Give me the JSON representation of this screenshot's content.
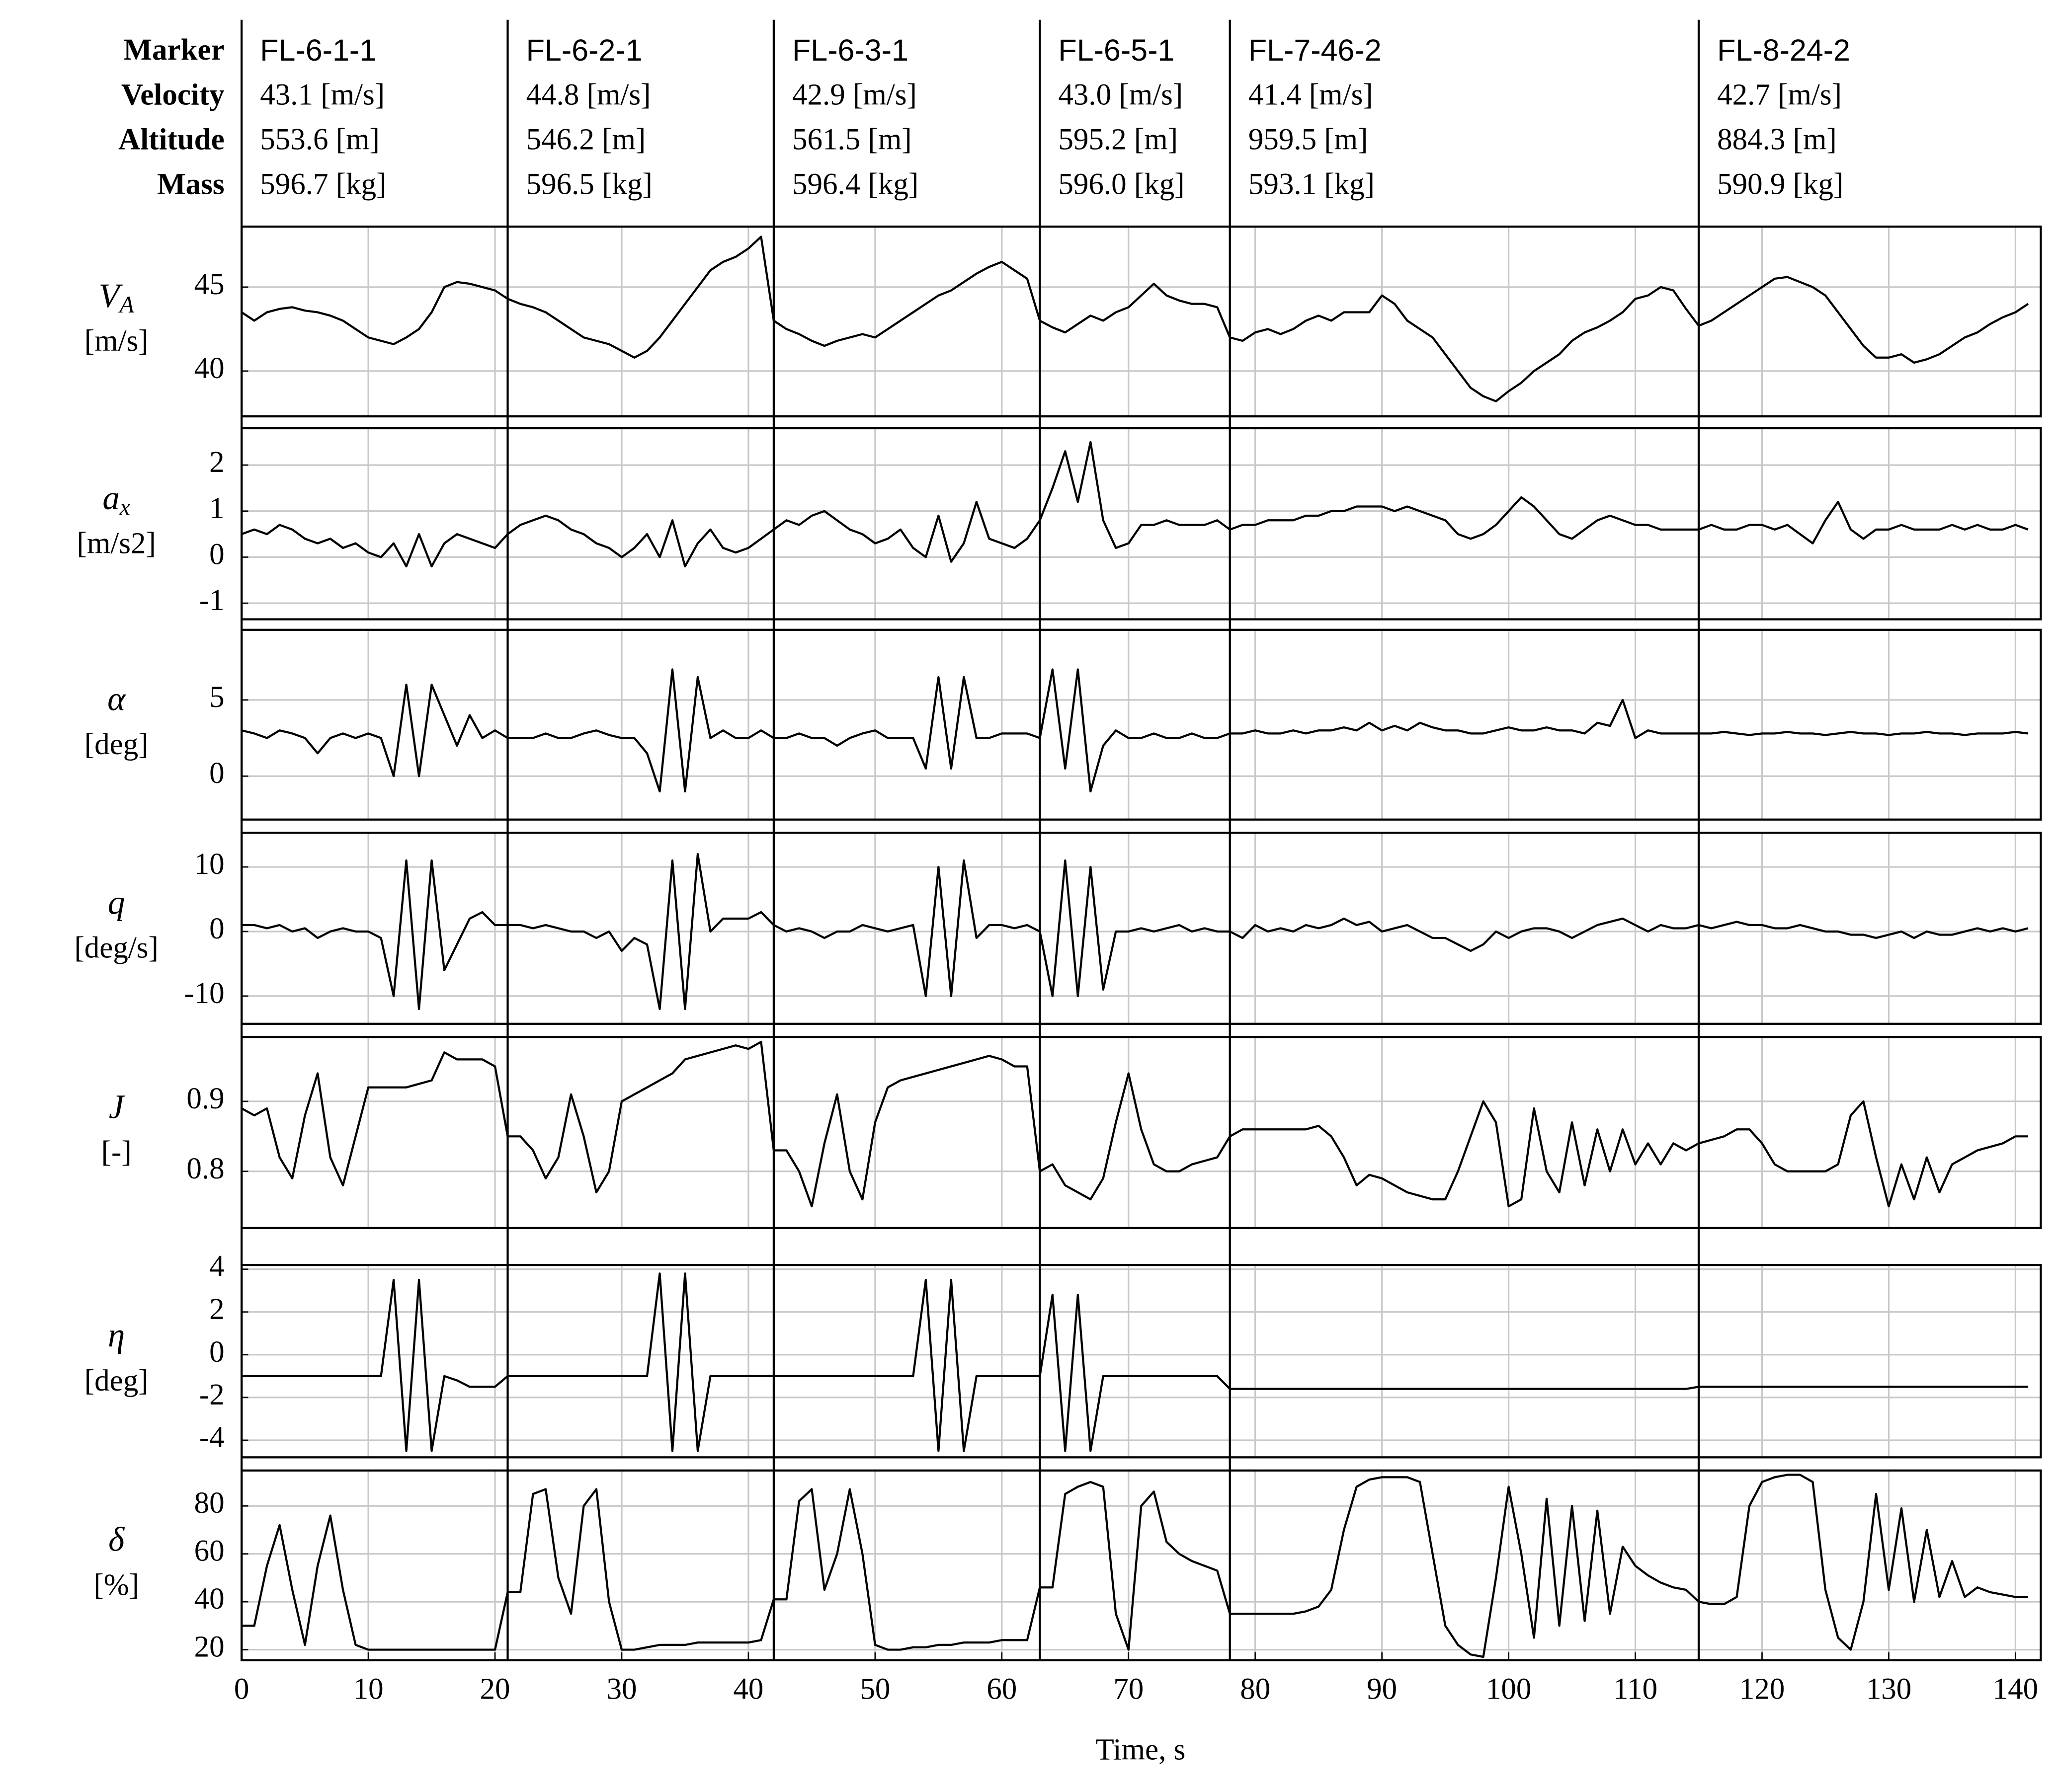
{
  "chart_data": {
    "type": "line",
    "row_labels": [
      "Marker",
      "Velocity",
      "Altitude",
      "Mass"
    ],
    "segments": [
      {
        "start": 0,
        "marker": "FL-6-1-1",
        "velocity": "43.1 [m/s]",
        "altitude": "553.6 [m]",
        "mass": "596.7 [kg]"
      },
      {
        "start": 21,
        "marker": "FL-6-2-1",
        "velocity": "44.8 [m/s]",
        "altitude": "546.2 [m]",
        "mass": "596.5 [kg]"
      },
      {
        "start": 42,
        "marker": "FL-6-3-1",
        "velocity": "42.9 [m/s]",
        "altitude": "561.5 [m]",
        "mass": "596.4 [kg]"
      },
      {
        "start": 63,
        "marker": "FL-6-5-1",
        "velocity": "43.0 [m/s]",
        "altitude": "595.2 [m]",
        "mass": "596.0 [kg]"
      },
      {
        "start": 78,
        "marker": "FL-7-46-2",
        "velocity": "41.4 [m/s]",
        "altitude": "959.5 [m]",
        "mass": "593.1 [kg]"
      },
      {
        "start": 115,
        "marker": "FL-8-24-2",
        "velocity": "42.7 [m/s]",
        "altitude": "884.3 [m]",
        "mass": "590.9 [kg]"
      }
    ],
    "xlabel": "Time, s",
    "xlim": [
      0,
      142
    ],
    "xticks": [
      0,
      10,
      20,
      30,
      40,
      50,
      60,
      70,
      80,
      90,
      100,
      110,
      120,
      130,
      140
    ],
    "grid": true,
    "color": "#000000",
    "x": [
      0,
      1,
      2,
      3,
      4,
      5,
      6,
      7,
      8,
      9,
      10,
      11,
      12,
      13,
      14,
      15,
      16,
      17,
      18,
      19,
      20,
      21,
      22,
      23,
      24,
      25,
      26,
      27,
      28,
      29,
      30,
      31,
      32,
      33,
      34,
      35,
      36,
      37,
      38,
      39,
      40,
      41,
      42,
      43,
      44,
      45,
      46,
      47,
      48,
      49,
      50,
      51,
      52,
      53,
      54,
      55,
      56,
      57,
      58,
      59,
      60,
      61,
      62,
      63,
      64,
      65,
      66,
      67,
      68,
      69,
      70,
      71,
      72,
      73,
      74,
      75,
      76,
      77,
      78,
      79,
      80,
      81,
      82,
      83,
      84,
      85,
      86,
      87,
      88,
      89,
      90,
      91,
      92,
      93,
      94,
      95,
      96,
      97,
      98,
      99,
      100,
      101,
      102,
      103,
      104,
      105,
      106,
      107,
      108,
      109,
      110,
      111,
      112,
      113,
      114,
      115,
      116,
      117,
      118,
      119,
      120,
      121,
      122,
      123,
      124,
      125,
      126,
      127,
      128,
      129,
      130,
      131,
      132,
      133,
      134,
      135,
      136,
      137,
      138,
      139,
      140,
      141
    ],
    "panels": [
      {
        "symbol": "V",
        "subscript": "A",
        "unit": "[m/s]",
        "ylim": [
          37.3,
          48.6
        ],
        "yticks": [
          40,
          45
        ],
        "values": [
          43.5,
          43,
          43.5,
          43.7,
          43.8,
          43.6,
          43.5,
          43.3,
          43,
          42.5,
          42,
          41.8,
          41.6,
          42,
          42.5,
          43.5,
          45,
          45.3,
          45.2,
          45,
          44.8,
          44.3,
          44,
          43.8,
          43.5,
          43,
          42.5,
          42,
          41.8,
          41.6,
          41.2,
          40.8,
          41.2,
          42,
          43,
          44,
          45,
          46,
          46.5,
          46.8,
          47.3,
          48,
          43,
          42.5,
          42.2,
          41.8,
          41.5,
          41.8,
          42,
          42.2,
          42,
          42.5,
          43,
          43.5,
          44,
          44.5,
          44.8,
          45.3,
          45.8,
          46.2,
          46.5,
          46,
          45.5,
          43,
          42.6,
          42.3,
          42.8,
          43.3,
          43,
          43.5,
          43.8,
          44.5,
          45.2,
          44.5,
          44.2,
          44,
          44,
          43.8,
          42,
          41.8,
          42.3,
          42.5,
          42.2,
          42.5,
          43,
          43.3,
          43,
          43.5,
          43.5,
          43.5,
          44.5,
          44,
          43,
          42.5,
          42,
          41,
          40,
          39,
          38.5,
          38.2,
          38.8,
          39.3,
          40,
          40.5,
          41,
          41.8,
          42.3,
          42.6,
          43,
          43.5,
          44.3,
          44.5,
          45,
          44.8,
          43.7,
          42.7,
          43,
          43.5,
          44,
          44.5,
          45,
          45.5,
          45.6,
          45.3,
          45,
          44.5,
          43.5,
          42.5,
          41.5,
          40.8,
          40.8,
          41,
          40.5,
          40.7,
          41,
          41.5,
          42,
          42.3,
          42.8,
          43.2,
          43.5,
          44
        ]
      },
      {
        "symbol": "a",
        "subscript": "x",
        "unit": "[m/s2]",
        "ylim": [
          -1.35,
          2.8
        ],
        "yticks": [
          -1,
          0,
          1,
          2
        ],
        "values": [
          0.5,
          0.6,
          0.5,
          0.7,
          0.6,
          0.4,
          0.3,
          0.4,
          0.2,
          0.3,
          0.1,
          0,
          0.3,
          -0.2,
          0.5,
          -0.2,
          0.3,
          0.5,
          0.4,
          0.3,
          0.2,
          0.5,
          0.7,
          0.8,
          0.9,
          0.8,
          0.6,
          0.5,
          0.3,
          0.2,
          0,
          0.2,
          0.5,
          0,
          0.8,
          -0.2,
          0.3,
          0.6,
          0.2,
          0.1,
          0.2,
          0.4,
          0.6,
          0.8,
          0.7,
          0.9,
          1.0,
          0.8,
          0.6,
          0.5,
          0.3,
          0.4,
          0.6,
          0.2,
          0,
          0.9,
          -0.1,
          0.3,
          1.2,
          0.4,
          0.3,
          0.2,
          0.4,
          0.8,
          1.5,
          2.3,
          1.2,
          2.5,
          0.8,
          0.2,
          0.3,
          0.7,
          0.7,
          0.8,
          0.7,
          0.7,
          0.7,
          0.8,
          0.6,
          0.7,
          0.7,
          0.8,
          0.8,
          0.8,
          0.9,
          0.9,
          1.0,
          1.0,
          1.1,
          1.1,
          1.1,
          1.0,
          1.1,
          1.0,
          0.9,
          0.8,
          0.5,
          0.4,
          0.5,
          0.7,
          1.0,
          1.3,
          1.1,
          0.8,
          0.5,
          0.4,
          0.6,
          0.8,
          0.9,
          0.8,
          0.7,
          0.7,
          0.6,
          0.6,
          0.6,
          0.6,
          0.7,
          0.6,
          0.6,
          0.7,
          0.7,
          0.6,
          0.7,
          0.5,
          0.3,
          0.8,
          1.2,
          0.6,
          0.4,
          0.6,
          0.6,
          0.7,
          0.6,
          0.6,
          0.6,
          0.7,
          0.6,
          0.7,
          0.6,
          0.6,
          0.7,
          0.6
        ]
      },
      {
        "symbol": "α",
        "unit": "[deg]",
        "ylim": [
          -2.85,
          9.6
        ],
        "yticks": [
          0,
          5
        ],
        "values": [
          3,
          2.8,
          2.5,
          3,
          2.8,
          2.5,
          1.5,
          2.5,
          2.8,
          2.5,
          2.8,
          2.5,
          0,
          6,
          0,
          6,
          4,
          2,
          4,
          2.5,
          3,
          2.5,
          2.5,
          2.5,
          2.8,
          2.5,
          2.5,
          2.8,
          3,
          2.7,
          2.5,
          2.5,
          1.5,
          -1,
          7,
          -1,
          6.5,
          2.5,
          3,
          2.5,
          2.5,
          3,
          2.5,
          2.5,
          2.8,
          2.5,
          2.5,
          2,
          2.5,
          2.8,
          3,
          2.5,
          2.5,
          2.5,
          0.5,
          6.5,
          0.5,
          6.5,
          2.5,
          2.5,
          2.8,
          2.8,
          2.8,
          2.5,
          7,
          0.5,
          7,
          -1,
          2,
          3,
          2.5,
          2.5,
          2.8,
          2.5,
          2.5,
          2.8,
          2.5,
          2.5,
          2.8,
          2.8,
          3,
          2.8,
          2.8,
          3,
          2.8,
          3,
          3,
          3.2,
          3,
          3.5,
          3,
          3.3,
          3,
          3.5,
          3.2,
          3,
          3,
          2.8,
          2.8,
          3,
          3.2,
          3,
          3,
          3.2,
          3,
          3,
          2.8,
          3.5,
          3.3,
          5,
          2.5,
          3,
          2.8,
          2.8,
          2.8,
          2.8,
          2.8,
          2.9,
          2.8,
          2.7,
          2.8,
          2.8,
          2.9,
          2.8,
          2.8,
          2.7,
          2.8,
          2.9,
          2.8,
          2.8,
          2.7,
          2.8,
          2.8,
          2.9,
          2.8,
          2.8,
          2.7,
          2.8,
          2.8,
          2.8,
          2.9,
          2.8
        ]
      },
      {
        "symbol": "q",
        "unit": "[deg/s]",
        "ylim": [
          -14.3,
          15.3
        ],
        "yticks": [
          -10,
          0,
          10
        ],
        "values": [
          1,
          1,
          0.5,
          1,
          0,
          0.5,
          -1,
          0,
          0.5,
          0,
          0,
          -1,
          -10,
          11,
          -12,
          11,
          -6,
          -2,
          2,
          3,
          1,
          1,
          1,
          0.5,
          1,
          0.5,
          0,
          0,
          -1,
          0,
          -3,
          -1,
          -2,
          -12,
          11,
          -12,
          12,
          0,
          2,
          2,
          2,
          3,
          1,
          0,
          0.5,
          0,
          -1,
          0,
          0,
          1,
          0.5,
          0,
          0.5,
          1,
          -10,
          10,
          -10,
          11,
          -1,
          1,
          1,
          0.5,
          1,
          0,
          -10,
          11,
          -10,
          10,
          -9,
          0,
          0,
          0.5,
          0,
          0.5,
          1,
          0,
          0.5,
          0,
          0,
          -1,
          1,
          0,
          0.5,
          0,
          1,
          0.5,
          1,
          2,
          1,
          1.5,
          0,
          0.5,
          1,
          0,
          -1,
          -1,
          -2,
          -3,
          -2,
          0,
          -1,
          0,
          0.5,
          0.5,
          0,
          -1,
          0,
          1,
          1.5,
          2,
          1,
          0,
          1,
          0.5,
          0.5,
          1,
          0.5,
          1,
          1.5,
          1,
          1,
          0.5,
          0.5,
          1,
          0.5,
          0,
          0,
          -0.5,
          -0.5,
          -1,
          -0.5,
          0,
          -1,
          0,
          -0.5,
          -0.5,
          0,
          0.5,
          0,
          0.5,
          0,
          0.5
        ]
      },
      {
        "symbol": "J",
        "unit": "[-]",
        "ylim": [
          0.719,
          0.992
        ],
        "yticks": [
          0.8,
          0.9
        ],
        "values": [
          0.89,
          0.88,
          0.89,
          0.82,
          0.79,
          0.88,
          0.94,
          0.82,
          0.78,
          0.85,
          0.92,
          0.92,
          0.92,
          0.92,
          0.925,
          0.93,
          0.97,
          0.96,
          0.96,
          0.96,
          0.95,
          0.85,
          0.85,
          0.83,
          0.79,
          0.82,
          0.91,
          0.85,
          0.77,
          0.8,
          0.9,
          0.91,
          0.92,
          0.93,
          0.94,
          0.96,
          0.965,
          0.97,
          0.975,
          0.98,
          0.975,
          0.985,
          0.83,
          0.83,
          0.8,
          0.75,
          0.84,
          0.91,
          0.8,
          0.76,
          0.87,
          0.92,
          0.93,
          0.935,
          0.94,
          0.945,
          0.95,
          0.955,
          0.96,
          0.965,
          0.96,
          0.95,
          0.95,
          0.8,
          0.81,
          0.78,
          0.77,
          0.76,
          0.79,
          0.87,
          0.94,
          0.86,
          0.81,
          0.8,
          0.8,
          0.81,
          0.815,
          0.82,
          0.85,
          0.86,
          0.86,
          0.86,
          0.86,
          0.86,
          0.86,
          0.865,
          0.85,
          0.82,
          0.78,
          0.795,
          0.79,
          0.78,
          0.77,
          0.765,
          0.76,
          0.76,
          0.8,
          0.85,
          0.9,
          0.87,
          0.75,
          0.76,
          0.89,
          0.8,
          0.77,
          0.87,
          0.78,
          0.86,
          0.8,
          0.86,
          0.81,
          0.84,
          0.81,
          0.84,
          0.83,
          0.84,
          0.845,
          0.85,
          0.86,
          0.86,
          0.84,
          0.81,
          0.8,
          0.8,
          0.8,
          0.8,
          0.81,
          0.88,
          0.9,
          0.82,
          0.75,
          0.81,
          0.76,
          0.82,
          0.77,
          0.81,
          0.82,
          0.83,
          0.835,
          0.84,
          0.85,
          0.85
        ]
      },
      {
        "symbol": "η",
        "unit": "[deg]",
        "ylim": [
          -4.8,
          4.2
        ],
        "yticks": [
          -4,
          -2,
          0,
          2,
          4
        ],
        "values": [
          -1,
          -1,
          -1,
          -1,
          -1,
          -1,
          -1,
          -1,
          -1,
          -1,
          -1,
          -1,
          3.5,
          -4.5,
          3.5,
          -4.5,
          -1,
          -1.2,
          -1.5,
          -1.5,
          -1.5,
          -1,
          -1,
          -1,
          -1,
          -1,
          -1,
          -1,
          -1,
          -1,
          -1,
          -1,
          -1,
          3.8,
          -4.5,
          3.8,
          -4.5,
          -1,
          -1,
          -1,
          -1,
          -1,
          -1,
          -1,
          -1,
          -1,
          -1,
          -1,
          -1,
          -1,
          -1,
          -1,
          -1,
          -1,
          3.5,
          -4.5,
          3.5,
          -4.5,
          -1,
          -1,
          -1,
          -1,
          -1,
          -1,
          2.8,
          -4.5,
          2.8,
          -4.5,
          -1,
          -1,
          -1,
          -1,
          -1,
          -1,
          -1,
          -1,
          -1,
          -1,
          -1.6,
          -1.6,
          -1.6,
          -1.6,
          -1.6,
          -1.6,
          -1.6,
          -1.6,
          -1.6,
          -1.6,
          -1.6,
          -1.6,
          -1.6,
          -1.6,
          -1.6,
          -1.6,
          -1.6,
          -1.6,
          -1.6,
          -1.6,
          -1.6,
          -1.6,
          -1.6,
          -1.6,
          -1.6,
          -1.6,
          -1.6,
          -1.6,
          -1.6,
          -1.6,
          -1.6,
          -1.6,
          -1.6,
          -1.6,
          -1.6,
          -1.6,
          -1.6,
          -1.5,
          -1.5,
          -1.5,
          -1.5,
          -1.5,
          -1.5,
          -1.5,
          -1.5,
          -1.5,
          -1.5,
          -1.5,
          -1.5,
          -1.5,
          -1.5,
          -1.5,
          -1.5,
          -1.5,
          -1.5,
          -1.5,
          -1.5,
          -1.5,
          -1.5,
          -1.5,
          -1.5,
          -1.5,
          -1.5,
          -1.5
        ]
      },
      {
        "symbol": "δ",
        "unit": "[%]",
        "ylim": [
          15.6,
          94.8
        ],
        "yticks": [
          20,
          40,
          60,
          80
        ],
        "values": [
          30,
          30,
          55,
          72,
          45,
          22,
          55,
          76,
          45,
          22,
          20,
          20,
          20,
          20,
          20,
          20,
          20,
          20,
          20,
          20,
          20,
          44,
          44,
          85,
          87,
          50,
          35,
          80,
          87,
          40,
          20,
          20,
          21,
          22,
          22,
          22,
          23,
          23,
          23,
          23,
          23,
          24,
          41,
          41,
          82,
          87,
          45,
          60,
          87,
          60,
          22,
          20,
          20,
          21,
          21,
          22,
          22,
          23,
          23,
          23,
          24,
          24,
          24,
          46,
          46,
          85,
          88,
          90,
          88,
          35,
          20,
          80,
          86,
          65,
          60,
          57,
          55,
          53,
          35,
          35,
          35,
          35,
          35,
          35,
          36,
          38,
          45,
          70,
          88,
          91,
          92,
          92,
          92,
          90,
          60,
          30,
          22,
          18,
          17,
          50,
          88,
          60,
          25,
          83,
          30,
          80,
          32,
          78,
          35,
          63,
          55,
          51,
          48,
          46,
          45,
          40,
          39,
          39,
          42,
          80,
          90,
          92,
          93,
          93,
          90,
          45,
          25,
          20,
          40,
          85,
          45,
          79,
          40,
          70,
          42,
          57,
          42,
          46,
          44,
          43,
          42,
          42
        ]
      }
    ]
  }
}
